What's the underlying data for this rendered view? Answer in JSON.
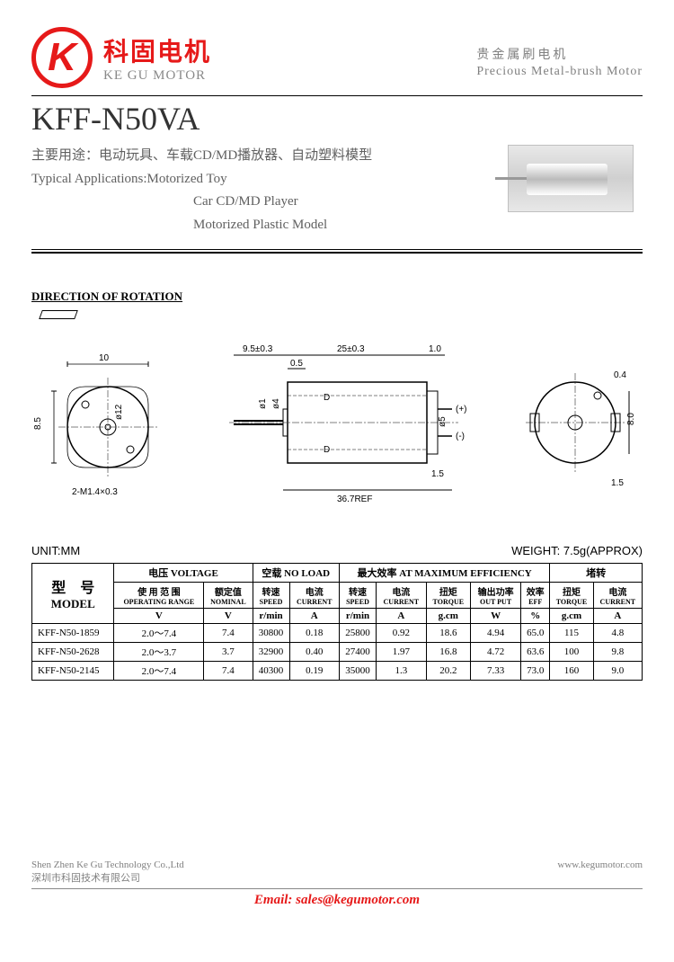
{
  "logo": {
    "letter": "K",
    "cn": "科固电机",
    "en": "KE GU MOTOR"
  },
  "subtitle": {
    "cn": "贵金属刷电机",
    "en": "Precious Metal-brush Motor"
  },
  "model": "KFF-N50VA",
  "applications": {
    "cn": "主要用途：电动玩具、车载CD/MD播放器、自动塑料模型",
    "en_label": "Typical Applications:",
    "items": [
      "Motorized Toy",
      "Car CD/MD Player",
      "Motorized Plastic Model"
    ]
  },
  "rotation_label": "DIRECTION OF ROTATION",
  "dimensions": {
    "d_front_width": "10",
    "d_front_height": "8.5",
    "d_front_dia": "ø12",
    "d_front_screw": "2-M1.4×0.3",
    "d_side_shaft": "9.5±0.3",
    "d_side_step": "0.5",
    "d_side_body": "25±0.3",
    "d_side_back": "1.0",
    "d_side_shaft_d": "ø1",
    "d_side_step_d": "ø4",
    "d_side_pin": "ø5",
    "d_side_pin_len": "1.5",
    "d_side_total": "36.7REF",
    "d_back_tab": "0.4",
    "d_back_h": "8.0",
    "d_back_offset": "1.5",
    "plus": "(+)",
    "minus": "(-)",
    "D": "D"
  },
  "table_meta": {
    "unit": "UNIT:MM",
    "weight": "WEIGHT: 7.5g(APPROX)"
  },
  "table": {
    "model_hdr_cn": "型　号",
    "model_hdr_en": "MODEL",
    "groups": {
      "voltage": {
        "cn": "电压",
        "en": "VOLTAGE"
      },
      "noload": {
        "cn": "空载",
        "en": "NO LOAD"
      },
      "maxeff": {
        "cn": "最大效率",
        "en": "AT MAXIMUM EFFICIENCY"
      },
      "stall": {
        "cn": "堵转",
        "en": ""
      }
    },
    "cols": [
      {
        "cn": "使 用 范 围",
        "en": "OPERATING RANGE",
        "u": "V"
      },
      {
        "cn": "额定值",
        "en": "NOMINAL",
        "u": "V"
      },
      {
        "cn": "转速",
        "en": "SPEED",
        "u": "r/min"
      },
      {
        "cn": "电流",
        "en": "CURRENT",
        "u": "A"
      },
      {
        "cn": "转速",
        "en": "SPEED",
        "u": "r/min"
      },
      {
        "cn": "电流",
        "en": "CURRENT",
        "u": "A"
      },
      {
        "cn": "扭矩",
        "en": "TORQUE",
        "u": "g.cm"
      },
      {
        "cn": "输出功率",
        "en": "OUT PUT",
        "u": "W"
      },
      {
        "cn": "效率",
        "en": "EFF",
        "u": "%"
      },
      {
        "cn": "扭矩",
        "en": "TORQUE",
        "u": "g.cm"
      },
      {
        "cn": "电流",
        "en": "CURRENT",
        "u": "A"
      }
    ],
    "rows": [
      {
        "model": "KFF-N50-1859",
        "v": [
          "2.0～7.4",
          "7.4",
          "30800",
          "0.18",
          "25800",
          "0.92",
          "18.6",
          "4.94",
          "65.0",
          "115",
          "4.8"
        ]
      },
      {
        "model": "KFF-N50-2628",
        "v": [
          "2.0～3.7",
          "3.7",
          "32900",
          "0.40",
          "27400",
          "1.97",
          "16.8",
          "4.72",
          "63.6",
          "100",
          "9.8"
        ]
      },
      {
        "model": "KFF-N50-2145",
        "v": [
          "2.0～7.4",
          "7.4",
          "40300",
          "0.19",
          "35000",
          "1.3",
          "20.2",
          "7.33",
          "73.0",
          "160",
          "9.0"
        ]
      }
    ]
  },
  "footer": {
    "company_en": "Shen Zhen Ke Gu Technology Co.,Ltd",
    "company_cn": "深圳市科固技术有限公司",
    "website": "www.kegumotor.com",
    "email_label": "Email: ",
    "email": "sales@kegumotor.com"
  }
}
